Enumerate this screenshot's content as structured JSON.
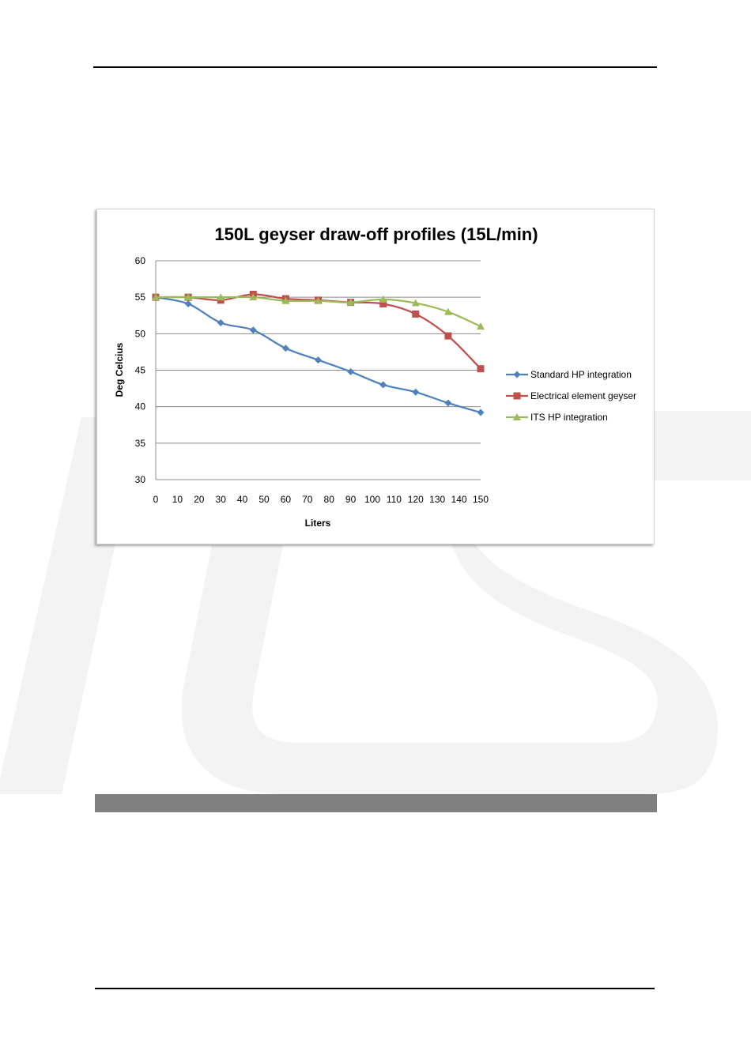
{
  "chart_data": {
    "type": "line",
    "title": "150L geyser draw-off profiles (15L/min)",
    "xlabel": "Liters",
    "ylabel": "Deg Celcius",
    "x": [
      0,
      15,
      30,
      45,
      60,
      75,
      90,
      105,
      120,
      135,
      150
    ],
    "xticks": [
      "0",
      "10",
      "20",
      "30",
      "40",
      "50",
      "60",
      "70",
      "80",
      "90",
      "100",
      "110",
      "120",
      "130",
      "140",
      "150"
    ],
    "xlim": [
      0,
      150
    ],
    "ylim": [
      30,
      60
    ],
    "yticks": [
      "30",
      "35",
      "40",
      "45",
      "50",
      "55",
      "60"
    ],
    "grid": "horizontal",
    "legend_position": "right",
    "series": [
      {
        "name": "Standard HP integration",
        "color": "#4f81bd",
        "marker": "diamond",
        "values": [
          55,
          54.1,
          51.5,
          50.5,
          48,
          46.4,
          44.8,
          43,
          42,
          40.5,
          39.2
        ]
      },
      {
        "name": "Electrical element geyser",
        "color": "#c0504d",
        "marker": "square",
        "values": [
          55,
          55,
          54.6,
          55.4,
          54.8,
          54.6,
          54.3,
          54.1,
          52.7,
          49.7,
          45.2
        ]
      },
      {
        "name": "ITS HP integration",
        "color": "#9bbb59",
        "marker": "triangle",
        "values": [
          55,
          55,
          55,
          55,
          54.5,
          54.5,
          54.3,
          54.7,
          54.2,
          53,
          51
        ]
      }
    ]
  }
}
